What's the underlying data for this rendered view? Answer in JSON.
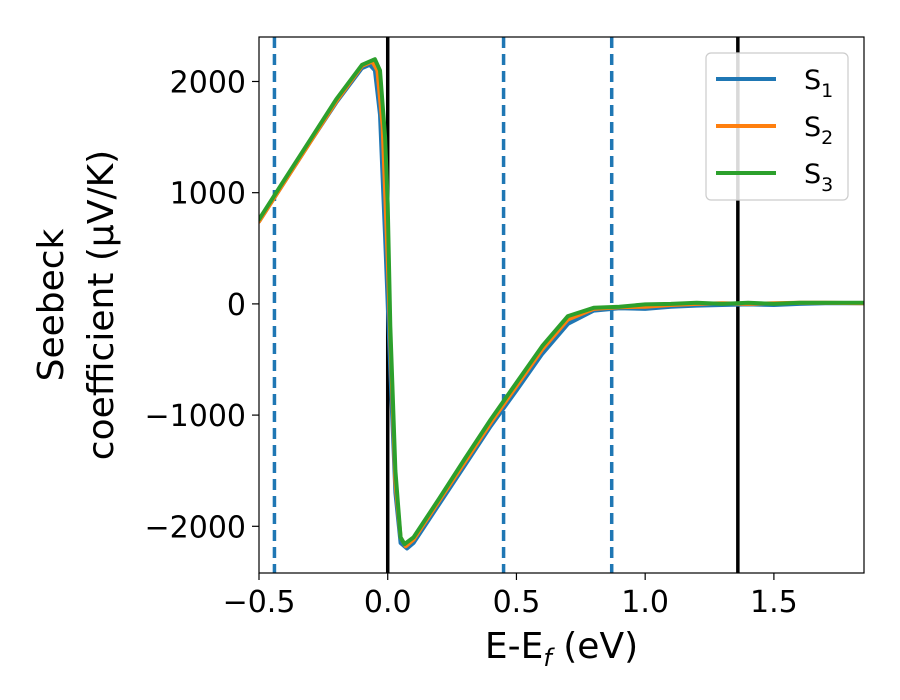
{
  "chart_data": {
    "type": "line",
    "xlabel": "E-E",
    "xlabel_sub": "f",
    "xlabel_unit": " (eV)",
    "ylabel_line1": "Seebeck",
    "ylabel_line2": "coefficient  (μV/K)",
    "xlim": [
      -0.5,
      1.85
    ],
    "ylim": [
      -2420,
      2400
    ],
    "x_ticks": [
      -0.5,
      0.0,
      0.5,
      1.0,
      1.5
    ],
    "x_tick_labels": [
      "−0.5",
      "0.0",
      "0.5",
      "1.0",
      "1.5"
    ],
    "y_ticks": [
      -2000,
      -1000,
      0,
      1000,
      2000
    ],
    "y_tick_labels": [
      "−2000",
      "−1000",
      "0",
      "1000",
      "2000"
    ],
    "grid": false,
    "legend_position": "top-right",
    "vlines_solid": [
      0.0,
      1.36
    ],
    "vlines_dashed": [
      -0.44,
      0.45,
      0.87
    ],
    "vline_solid_color": "#000000",
    "vline_dashed_color": "#1f77b4",
    "series": [
      {
        "name": "S",
        "sub": "1",
        "color": "#1f77b4",
        "points": [
          [
            -0.5,
            740
          ],
          [
            -0.4,
            1100
          ],
          [
            -0.3,
            1460
          ],
          [
            -0.2,
            1810
          ],
          [
            -0.1,
            2120
          ],
          [
            -0.07,
            2150
          ],
          [
            -0.05,
            2100
          ],
          [
            -0.03,
            1700
          ],
          [
            -0.01,
            600
          ],
          [
            0.0,
            0
          ],
          [
            0.01,
            -600
          ],
          [
            0.03,
            -1700
          ],
          [
            0.05,
            -2150
          ],
          [
            0.075,
            -2200
          ],
          [
            0.1,
            -2150
          ],
          [
            0.2,
            -1800
          ],
          [
            0.3,
            -1450
          ],
          [
            0.4,
            -1100
          ],
          [
            0.5,
            -780
          ],
          [
            0.6,
            -450
          ],
          [
            0.7,
            -180
          ],
          [
            0.8,
            -60
          ],
          [
            0.9,
            -40
          ],
          [
            1.0,
            -45
          ],
          [
            1.1,
            -25
          ],
          [
            1.2,
            -15
          ],
          [
            1.3,
            -10
          ],
          [
            1.4,
            -5
          ],
          [
            1.5,
            -10
          ],
          [
            1.6,
            0
          ],
          [
            1.7,
            5
          ],
          [
            1.85,
            5
          ]
        ]
      },
      {
        "name": "S",
        "sub": "2",
        "color": "#ff7f0e",
        "points": [
          [
            -0.5,
            740
          ],
          [
            -0.4,
            1100
          ],
          [
            -0.3,
            1460
          ],
          [
            -0.2,
            1820
          ],
          [
            -0.1,
            2140
          ],
          [
            -0.06,
            2180
          ],
          [
            -0.04,
            2100
          ],
          [
            -0.02,
            1600
          ],
          [
            0.0,
            400
          ],
          [
            0.01,
            -300
          ],
          [
            0.03,
            -1600
          ],
          [
            0.05,
            -2100
          ],
          [
            0.07,
            -2180
          ],
          [
            0.1,
            -2120
          ],
          [
            0.2,
            -1770
          ],
          [
            0.3,
            -1420
          ],
          [
            0.4,
            -1070
          ],
          [
            0.5,
            -740
          ],
          [
            0.6,
            -410
          ],
          [
            0.7,
            -140
          ],
          [
            0.8,
            -45
          ],
          [
            0.9,
            -30
          ],
          [
            1.0,
            -25
          ],
          [
            1.1,
            -10
          ],
          [
            1.2,
            0
          ],
          [
            1.3,
            5
          ],
          [
            1.4,
            0
          ],
          [
            1.5,
            5
          ],
          [
            1.6,
            10
          ],
          [
            1.7,
            10
          ],
          [
            1.85,
            5
          ]
        ]
      },
      {
        "name": "S",
        "sub": "3",
        "color": "#2ca02c",
        "points": [
          [
            -0.5,
            760
          ],
          [
            -0.4,
            1120
          ],
          [
            -0.3,
            1480
          ],
          [
            -0.2,
            1840
          ],
          [
            -0.1,
            2150
          ],
          [
            -0.05,
            2200
          ],
          [
            -0.03,
            2100
          ],
          [
            -0.01,
            1500
          ],
          [
            0.0,
            900
          ],
          [
            0.01,
            -200
          ],
          [
            0.03,
            -1500
          ],
          [
            0.05,
            -2100
          ],
          [
            0.065,
            -2160
          ],
          [
            0.1,
            -2100
          ],
          [
            0.2,
            -1750
          ],
          [
            0.3,
            -1390
          ],
          [
            0.4,
            -1040
          ],
          [
            0.5,
            -710
          ],
          [
            0.6,
            -380
          ],
          [
            0.7,
            -110
          ],
          [
            0.8,
            -35
          ],
          [
            0.9,
            -25
          ],
          [
            1.0,
            -5
          ],
          [
            1.1,
            0
          ],
          [
            1.2,
            10
          ],
          [
            1.3,
            0
          ],
          [
            1.4,
            10
          ],
          [
            1.5,
            0
          ],
          [
            1.6,
            10
          ],
          [
            1.7,
            10
          ],
          [
            1.85,
            10
          ]
        ]
      }
    ]
  }
}
